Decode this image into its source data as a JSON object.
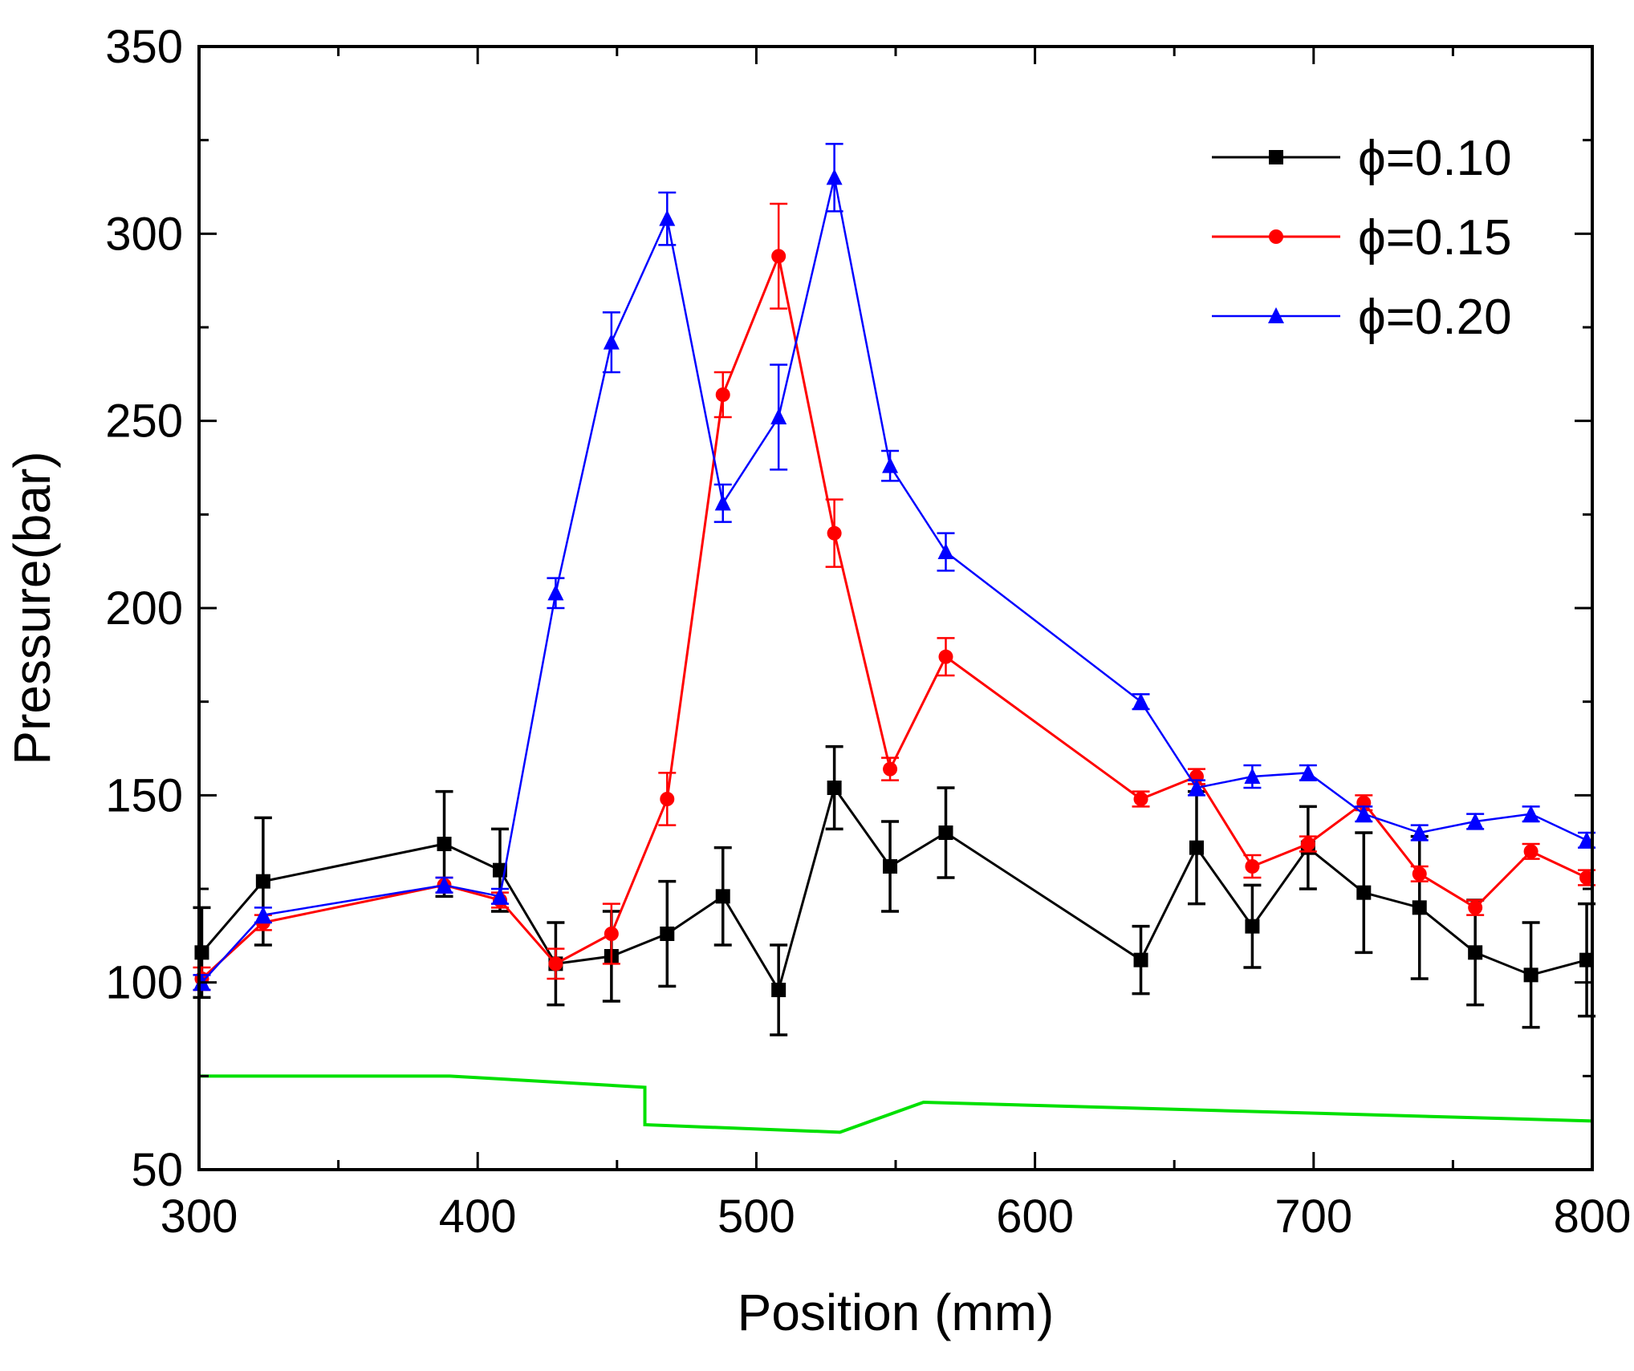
{
  "chart_data": {
    "type": "line",
    "title": "",
    "xlabel": "Position (mm)",
    "ylabel": "Pressure(bar)",
    "xlim": [
      300,
      800
    ],
    "ylim": [
      50,
      350
    ],
    "xticks": [
      300,
      400,
      500,
      600,
      700,
      800
    ],
    "yticks": [
      50,
      100,
      150,
      200,
      250,
      300,
      350
    ],
    "xtick_labels": [
      "300",
      "400",
      "500",
      "600",
      "700",
      "800"
    ],
    "ytick_labels": [
      "50",
      "100",
      "150",
      "200",
      "250",
      "300",
      "350"
    ],
    "legend_position": "top-right",
    "series": [
      {
        "name": "ϕ=0.10",
        "color": "#000000",
        "marker": "square",
        "x": [
          301,
          323,
          388,
          408,
          428,
          448,
          468,
          488,
          508,
          528,
          548,
          568,
          638,
          658,
          678,
          698,
          718,
          738,
          758,
          778,
          798
        ],
        "y": [
          108,
          127,
          137,
          130,
          105,
          107,
          113,
          123,
          98,
          152,
          131,
          140,
          106,
          136,
          115,
          136,
          124,
          120,
          108,
          102,
          106
        ],
        "err": [
          12,
          17,
          14,
          11,
          11,
          12,
          14,
          13,
          12,
          11,
          12,
          12,
          9,
          15,
          11,
          11,
          16,
          19,
          14,
          14,
          15
        ]
      },
      {
        "name": "ϕ=0.15",
        "color": "#ff0000",
        "marker": "circle",
        "x": [
          301,
          323,
          388,
          408,
          428,
          448,
          468,
          488,
          508,
          528,
          548,
          568,
          638,
          658,
          678,
          698,
          718,
          738,
          758,
          778,
          798
        ],
        "y": [
          101,
          116,
          126,
          122,
          105,
          113,
          149,
          257,
          294,
          220,
          157,
          187,
          149,
          155,
          131,
          137,
          148,
          129,
          120,
          135,
          128
        ],
        "err": [
          3,
          2,
          2,
          2,
          4,
          8,
          7,
          6,
          14,
          9,
          3,
          5,
          2,
          2,
          3,
          2,
          2,
          2,
          2,
          2,
          2
        ]
      },
      {
        "name": "ϕ=0.20",
        "color": "#0000ff",
        "marker": "triangle",
        "x": [
          301,
          323,
          388,
          408,
          428,
          448,
          468,
          488,
          508,
          528,
          548,
          568,
          638,
          658,
          678,
          698,
          718,
          738,
          758,
          778,
          798
        ],
        "y": [
          100,
          118,
          126,
          123,
          204,
          271,
          304,
          228,
          251,
          315,
          238,
          215,
          175,
          152,
          155,
          156,
          145,
          140,
          143,
          145,
          138
        ],
        "err": [
          2,
          2,
          2,
          2,
          4,
          8,
          7,
          5,
          14,
          9,
          4,
          5,
          2,
          2,
          3,
          2,
          2,
          2,
          2,
          2,
          2
        ]
      },
      {
        "name": "",
        "color": "#00e000",
        "marker": "none",
        "x": [
          300,
          390,
          460,
          460,
          530,
          560,
          800
        ],
        "y": [
          75,
          75,
          72,
          62,
          60,
          68,
          63
        ],
        "err": []
      }
    ]
  }
}
